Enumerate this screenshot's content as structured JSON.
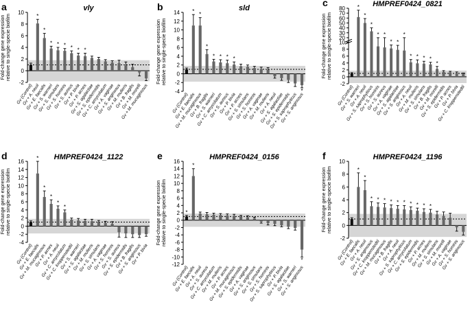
{
  "figure_ylabel": "Fold-change gene expression relative to single-specie biofilm",
  "chart_data": [
    {
      "type": "bar",
      "panel_letter": "a",
      "title": "vly",
      "title_style": "italic",
      "ylabel": "Fold-change gene expression relative to single-specie biofilm",
      "ylim": [
        -2,
        10
      ],
      "yticks": [
        -2,
        0,
        2,
        4,
        6,
        8,
        10
      ],
      "band": [
        -1.8,
        1.8
      ],
      "dotted_line": 1,
      "categories": [
        "Gv (Control)",
        "Gv + A. neuii",
        "Gv + E. faecalis",
        "Gv + S. warneri",
        "Gv + S. simulans",
        "Gv + S. hominis",
        "Gv + S. aureus",
        "Gv + P. bivia",
        "Gv + P. acnes",
        "Gv + S. agalactiae",
        "Gv + S. epidermidis",
        "Gv + C. amycolatum",
        "Gv + A. vaginae",
        "Gv + S. anginosus",
        "Gv + M. mulieris",
        "Gv + B. fragilis",
        "Gv + M. morelli",
        "Gv + M. mucaginosus"
      ],
      "values": [
        1.0,
        8.1,
        5.6,
        3.8,
        3.5,
        3.4,
        3.0,
        2.6,
        2.5,
        2.2,
        2.0,
        1.6,
        1.4,
        1.3,
        0.9,
        0.6,
        -0.3,
        -1.3
      ],
      "errors": [
        0.3,
        0.7,
        0.8,
        0.4,
        0.5,
        0.4,
        0.4,
        0.4,
        0.5,
        0.3,
        0.3,
        0.3,
        0.3,
        0.5,
        0.6,
        0.5,
        0.6,
        0.4
      ],
      "significance": [
        "",
        "*",
        "*",
        "*",
        "*",
        "*",
        "*",
        "*",
        "*",
        "",
        "",
        "",
        "",
        "",
        "",
        "",
        "",
        ""
      ]
    },
    {
      "type": "bar",
      "panel_letter": "b",
      "title": "sld",
      "title_style": "italic",
      "ylabel": "Fold-change gene expression relative to single-specie biofilm",
      "ylim": [
        -4,
        14
      ],
      "yticks": [
        -4,
        -2,
        0,
        2,
        4,
        6,
        8,
        10,
        12,
        14
      ],
      "band": [
        -1.8,
        1.8
      ],
      "dotted_line": 1,
      "categories": [
        "Gv (Control)",
        "Gv + E. faecalis",
        "Gv + M. mucaginosus",
        "Gv + B. fragilis",
        "Gv + S. warneri",
        "Gv + C. amycolatum",
        "Gv + S. aureus",
        "Gv + P. bivia",
        "Gv + P. acnes",
        "Gv + S. simulans",
        "Gv + S. hominis",
        "Gv + A. vaginae",
        "Gv + M. mulieris",
        "Gv + A. neuii",
        "Gv + S. agalactiae",
        "Gv + S. epidermidis",
        "Gv + S. saprophyticus",
        "Gv + S. anginosus"
      ],
      "values": [
        1.0,
        11.0,
        11.0,
        4.5,
        2.8,
        2.6,
        2.4,
        2.1,
        1.7,
        1.6,
        1.3,
        1.1,
        0.9,
        -0.6,
        -1.0,
        -1.4,
        -2.2,
        -2.6
      ],
      "errors": [
        0.3,
        2.5,
        1.8,
        1.0,
        0.5,
        0.6,
        0.7,
        0.6,
        0.5,
        0.4,
        0.4,
        0.4,
        0.5,
        0.4,
        0.5,
        0.6,
        0.7,
        0.6
      ],
      "significance": [
        "",
        "*",
        "*",
        "*",
        "*",
        "*",
        "*",
        "*",
        "",
        "",
        "",
        "",
        "",
        "",
        "",
        "",
        "",
        "*"
      ]
    },
    {
      "type": "bar",
      "panel_letter": "c",
      "title": "HMPREF0424_0821",
      "title_style": "bold-italic",
      "ylabel": "Fold-change gene expression relative to single-specie biofilm",
      "ylim": [
        -2,
        80
      ],
      "axis_break": [
        10,
        20
      ],
      "yticks": [
        -2,
        0,
        2,
        4,
        6,
        8,
        10,
        20,
        30,
        40,
        50,
        60,
        70,
        80
      ],
      "band": [
        -1.8,
        1.8
      ],
      "dotted_line": 1,
      "categories": [
        "Gv (Control)",
        "Gv + S. warneri",
        "Gv + A. neuii",
        "Gv + S. saprophyticus",
        "Gv + S. hominis",
        "Gv + S. aureus",
        "Gv + A. vaginae",
        "Gv + S. agalactiae",
        "Gv + S. anginosus",
        "Gv + A. neuii",
        "Gv + M. mulieris",
        "Gv + S. simulans",
        "Gv + B. fragilis",
        "Gv + M. morelli",
        "Gv + S. epidermidis",
        "Gv + P. acnes",
        "Gv + P. bivia",
        "Gv + C. kroppenstedtii"
      ],
      "values": [
        1.0,
        62,
        50,
        33,
        8.8,
        8.5,
        8.2,
        7.8,
        7.6,
        4.2,
        3.9,
        3.8,
        3.6,
        2.3,
        1.5,
        1.3,
        1.1,
        0.9
      ],
      "errors": [
        0.2,
        14,
        9,
        7,
        1.6,
        1.6,
        1.0,
        1.3,
        2.6,
        0.8,
        1.0,
        0.7,
        0.6,
        0.7,
        0.3,
        0.3,
        0.3,
        0.2
      ],
      "significance": [
        "",
        "*",
        "*",
        "*",
        "*",
        "*",
        "*",
        "*",
        "*",
        "*",
        "*",
        "*",
        "*",
        "*",
        "",
        "",
        "",
        ""
      ]
    },
    {
      "type": "bar",
      "panel_letter": "d",
      "title": "HMPREF0424_1122",
      "title_style": "bold-italic",
      "ylabel": "Fold-change gene expression relative to single-specie biofilm",
      "ylim": [
        -4,
        16
      ],
      "yticks": [
        -4,
        -2,
        0,
        2,
        4,
        6,
        8,
        10,
        12,
        14,
        16
      ],
      "band": [
        -1.8,
        1.8
      ],
      "dotted_line": 1,
      "categories": [
        "Gv (Control)",
        "Gv + E. faecalis",
        "Gv + M. mucaginosus",
        "Gv + P. acnes",
        "Gv + A. neuii",
        "Gv + C. amycolatum",
        "Gv + C. kroppenstedtii",
        "Gv + S. warneri",
        "Gv + S. agalactiae",
        "Gv + M. mulieris",
        "Gv + S. simulans",
        "Gv + A. vaginae",
        "Gv + S. hominis",
        "Gv + S. aureus",
        "Gv + S. epidermidis",
        "Gv + B. fragilis",
        "Gv + S. anginosus",
        "Gv + P. bivia"
      ],
      "values": [
        1.0,
        13.0,
        7.2,
        5.5,
        4.3,
        3.4,
        1.6,
        1.4,
        1.3,
        1.2,
        1.0,
        0.8,
        0.6,
        -1.5,
        -1.8,
        -2.0,
        -2.2,
        -2.0
      ],
      "errors": [
        0.3,
        3.0,
        1.5,
        1.0,
        0.7,
        0.6,
        0.4,
        0.5,
        0.4,
        0.5,
        0.4,
        0.4,
        0.5,
        1.2,
        1.0,
        0.8,
        0.6,
        0.5
      ],
      "significance": [
        "",
        "*",
        "*",
        "*",
        "*",
        "*",
        "",
        "",
        "",
        "",
        "",
        "",
        "",
        "",
        "",
        "",
        "",
        ""
      ]
    },
    {
      "type": "bar",
      "panel_letter": "e",
      "title": "HMPREF0424_0156",
      "title_style": "bold-italic",
      "ylabel": "Fold-change gene expression relative to single-specie biofilm",
      "ylim": [
        -12,
        16
      ],
      "yticks": [
        -12,
        -10,
        -8,
        -6,
        -4,
        -2,
        0,
        2,
        4,
        6,
        8,
        10,
        12,
        14,
        16
      ],
      "band": [
        -1.8,
        1.8
      ],
      "dotted_line": 1,
      "categories": [
        "Gv (Control)",
        "Gv + E. faecalis",
        "Gv + A. neuii",
        "Gv + S. aureus",
        "Gv + C. amycolatum",
        "Gv + M. mulieris",
        "Gv + P. acnes",
        "Gv + M. mucaginosus",
        "Gv + S. epidermidis",
        "Gv + A. vaginae",
        "Gv + S. anginosus",
        "Gv + S. simulans",
        "Gv + S. hominis",
        "Gv + S. saprophyticus",
        "Gv + P. bivia",
        "Gv + S. agalactiae",
        "Gv + S. warneri",
        "Gv + S. anginosus"
      ],
      "values": [
        1.0,
        12.0,
        1.8,
        1.6,
        1.5,
        1.4,
        1.3,
        1.2,
        1.0,
        0.8,
        0.5,
        -0.4,
        -0.8,
        -1.0,
        -1.4,
        -1.8,
        -2.1,
        -8.0
      ],
      "errors": [
        0.3,
        2.0,
        0.4,
        0.5,
        0.4,
        0.4,
        0.4,
        0.4,
        0.3,
        0.4,
        0.3,
        0.4,
        0.5,
        0.5,
        0.4,
        0.5,
        0.6,
        2.0
      ],
      "significance": [
        "*",
        "*",
        "",
        "",
        "",
        "",
        "",
        "",
        "",
        "",
        "",
        "",
        "",
        "",
        "",
        "",
        "",
        "*"
      ]
    },
    {
      "type": "bar",
      "panel_letter": "f",
      "title": "HMPREF0424_1196",
      "title_style": "bold-italic",
      "ylabel": "Fold-change gene expression relative to single-specie biofilm",
      "ylim": [
        -2,
        10
      ],
      "yticks": [
        -2,
        0,
        2,
        4,
        6,
        8,
        10
      ],
      "band": [
        -1.8,
        1.8
      ],
      "dotted_line": 1,
      "categories": [
        "Gv (Control)",
        "Gv + E. faecalis",
        "Gv + A. neuii",
        "Gv + S. anginosus",
        "Gv + C. kroppenstedtii",
        "Gv + M. mucaginosus",
        "Gv + B. fragilis",
        "Gv + A. neuii",
        "Gv + S. saprophyticus",
        "Gv + C. amycolatum",
        "Gv + S. epidermidis",
        "Gv + P. acnes",
        "Gv + M. mulieris",
        "Gv + S. simulans",
        "Gv + M. morelli",
        "Gv + A. vaginae",
        "Gv + S. hominis",
        "Gv + S. anginosus"
      ],
      "values": [
        1.0,
        6.0,
        5.5,
        3.0,
        2.9,
        2.8,
        2.7,
        2.6,
        2.5,
        2.4,
        2.3,
        2.1,
        2.0,
        1.7,
        1.5,
        1.2,
        -0.3,
        -1.0
      ],
      "errors": [
        0.2,
        2.2,
        1.5,
        0.7,
        0.6,
        0.6,
        0.5,
        0.5,
        0.6,
        0.5,
        0.4,
        0.5,
        0.5,
        0.5,
        0.6,
        0.7,
        0.6,
        0.5
      ],
      "significance": [
        "",
        "*",
        "*",
        "*",
        "*",
        "*",
        "*",
        "*",
        "*",
        "*",
        "*",
        "*",
        "*",
        "",
        "",
        "",
        "",
        ""
      ]
    }
  ]
}
